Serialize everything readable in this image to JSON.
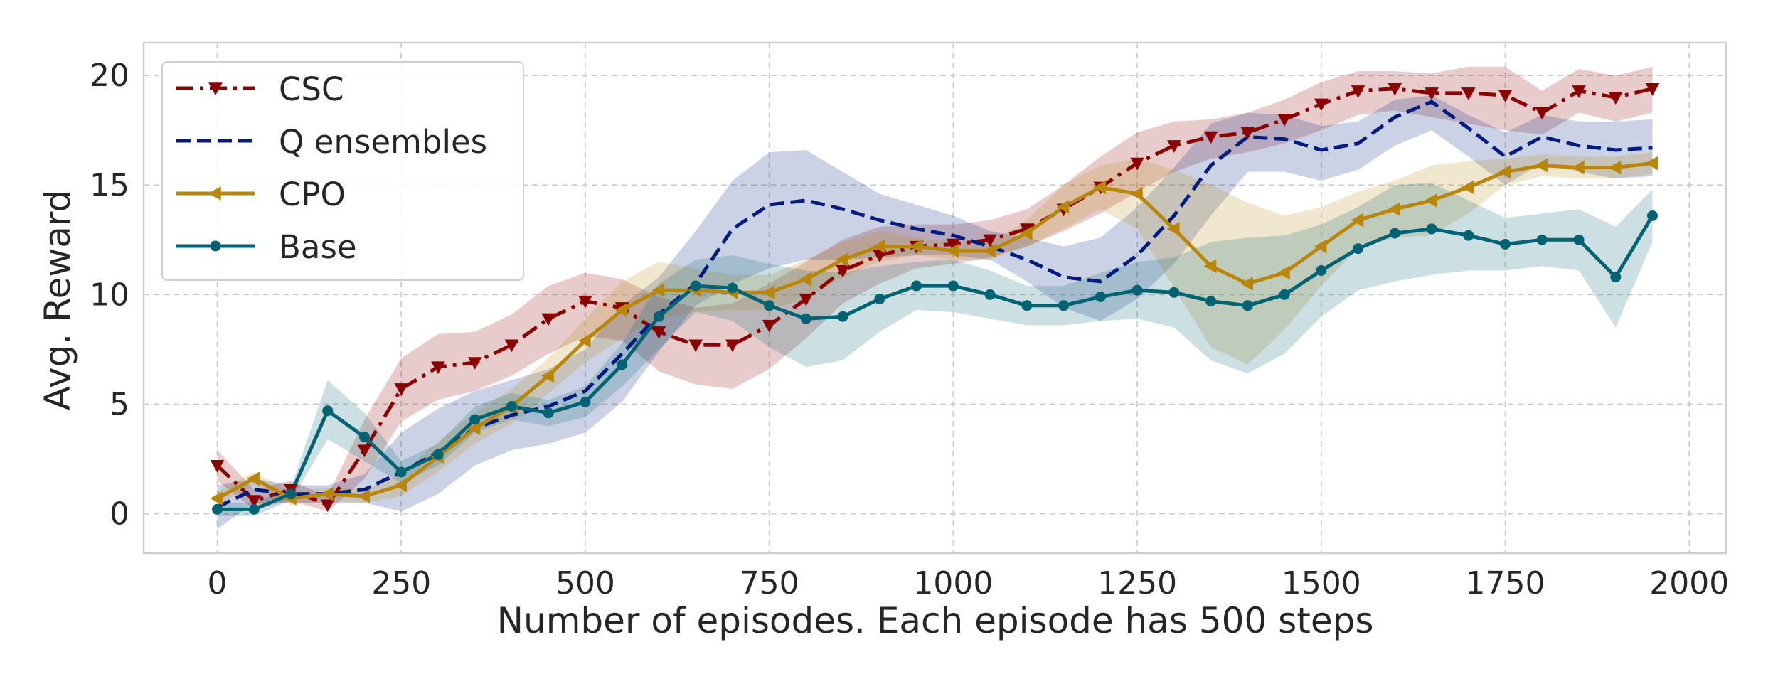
{
  "chart_data": {
    "type": "line",
    "title": "",
    "xlabel": "Number of episodes. Each episode has 500 steps",
    "ylabel": "Avg. Reward",
    "xlim": [
      -100,
      2050
    ],
    "ylim": [
      -1.8,
      21.5
    ],
    "xticks": [
      0,
      250,
      500,
      750,
      1000,
      1250,
      1500,
      1750,
      2000
    ],
    "yticks": [
      0,
      5,
      10,
      15,
      20
    ],
    "grid": true,
    "legend_position": "top-left",
    "x": [
      0,
      50,
      100,
      150,
      200,
      250,
      300,
      350,
      400,
      450,
      500,
      550,
      600,
      650,
      700,
      750,
      800,
      850,
      900,
      950,
      1000,
      1050,
      1100,
      1150,
      1200,
      1250,
      1300,
      1350,
      1400,
      1450,
      1500,
      1550,
      1600,
      1650,
      1700,
      1750,
      1800,
      1850,
      1900,
      1950
    ],
    "series": [
      {
        "name": "CSC",
        "color": "#8b0000",
        "dash": "dashdot",
        "marker": "triangle-down",
        "values": [
          2.2,
          0.6,
          1.1,
          0.4,
          2.9,
          5.7,
          6.7,
          6.9,
          7.7,
          8.9,
          9.7,
          9.4,
          8.3,
          7.7,
          7.7,
          8.6,
          9.8,
          11.1,
          11.8,
          12.2,
          12.3,
          12.5,
          13.0,
          13.9,
          14.9,
          16.0,
          16.8,
          17.2,
          17.4,
          18.0,
          18.7,
          19.3,
          19.4,
          19.2,
          19.2,
          19.1,
          18.3,
          19.3,
          19.0,
          19.4
        ],
        "lower": [
          1.5,
          0.2,
          0.6,
          0.1,
          1.6,
          4.2,
          5.2,
          5.6,
          6.3,
          7.3,
          8.1,
          7.9,
          6.5,
          5.9,
          5.7,
          6.6,
          8.0,
          9.6,
          10.5,
          11.2,
          11.4,
          11.7,
          12.2,
          12.9,
          13.7,
          14.7,
          15.6,
          16.2,
          16.5,
          16.9,
          17.5,
          18.2,
          18.4,
          18.1,
          17.8,
          17.5,
          17.3,
          18.3,
          17.9,
          18.3
        ],
        "upper": [
          2.9,
          1.1,
          1.5,
          0.8,
          4.3,
          7.1,
          8.2,
          8.3,
          9.1,
          10.4,
          11.0,
          10.7,
          9.9,
          9.4,
          9.6,
          10.5,
          11.5,
          12.5,
          13.1,
          13.2,
          13.2,
          13.4,
          13.9,
          15.0,
          16.3,
          17.4,
          17.9,
          18.0,
          18.3,
          18.9,
          19.7,
          20.2,
          20.2,
          20.1,
          20.4,
          20.4,
          19.3,
          20.3,
          20.0,
          20.4
        ]
      },
      {
        "name": "Q ensembles",
        "color": "#001c7f",
        "dash": "dashed",
        "marker": "none",
        "values": [
          0.3,
          1.1,
          0.9,
          0.9,
          1.1,
          1.9,
          2.8,
          3.9,
          4.5,
          4.9,
          5.6,
          7.3,
          9.1,
          10.5,
          13.0,
          14.1,
          14.3,
          13.9,
          13.4,
          13.0,
          12.7,
          12.2,
          11.6,
          10.8,
          10.6,
          11.8,
          13.6,
          15.9,
          17.2,
          17.1,
          16.6,
          16.9,
          18.1,
          18.8,
          17.6,
          16.3,
          17.2,
          16.8,
          16.6,
          16.7
        ],
        "lower": [
          -0.7,
          0.5,
          0.5,
          0.5,
          0.5,
          0.1,
          0.9,
          2.2,
          2.9,
          3.2,
          3.7,
          5.1,
          7.4,
          9.5,
          10.5,
          11.2,
          11.6,
          11.6,
          11.7,
          11.8,
          11.8,
          11.6,
          10.6,
          9.4,
          8.8,
          9.8,
          11.4,
          13.6,
          15.6,
          15.6,
          15.2,
          15.7,
          16.8,
          17.5,
          16.3,
          15.0,
          16.0,
          15.6,
          15.3,
          15.4
        ],
        "upper": [
          1.3,
          1.6,
          1.3,
          1.3,
          1.8,
          3.7,
          4.8,
          5.6,
          6.1,
          6.6,
          7.5,
          9.5,
          10.8,
          12.9,
          15.2,
          16.5,
          16.6,
          15.6,
          14.6,
          14.1,
          13.6,
          12.9,
          12.6,
          12.2,
          12.6,
          14.0,
          15.8,
          17.8,
          18.3,
          18.2,
          17.7,
          17.9,
          18.9,
          19.1,
          18.2,
          17.4,
          18.2,
          17.9,
          17.9,
          18.0
        ]
      },
      {
        "name": "CPO",
        "color": "#b8860b",
        "dash": "solid",
        "marker": "triangle-left",
        "values": [
          0.7,
          1.6,
          0.7,
          0.9,
          0.8,
          1.3,
          2.6,
          3.9,
          4.9,
          6.3,
          7.9,
          9.3,
          10.2,
          10.2,
          10.1,
          10.1,
          10.7,
          11.6,
          12.2,
          12.2,
          12.0,
          12.0,
          12.8,
          14.0,
          14.9,
          14.6,
          13.0,
          11.3,
          10.5,
          11.0,
          12.2,
          13.4,
          13.9,
          14.3,
          14.9,
          15.6,
          15.9,
          15.8,
          15.8,
          16.0
        ],
        "lower": [
          0.4,
          1.3,
          0.4,
          0.6,
          0.5,
          0.8,
          1.9,
          3.2,
          4.1,
          5.5,
          6.9,
          8.0,
          8.9,
          9.2,
          9.3,
          9.3,
          9.8,
          10.8,
          11.5,
          11.8,
          11.6,
          11.6,
          12.2,
          13.0,
          13.9,
          13.0,
          10.3,
          7.6,
          6.8,
          8.4,
          10.4,
          12.1,
          12.6,
          12.7,
          13.7,
          15.0,
          15.4,
          15.3,
          15.3,
          15.5
        ],
        "upper": [
          1.0,
          1.9,
          1.0,
          1.2,
          1.1,
          1.8,
          3.3,
          4.6,
          5.7,
          7.1,
          8.9,
          10.6,
          11.5,
          11.2,
          10.9,
          10.9,
          11.6,
          12.4,
          12.9,
          12.6,
          12.4,
          12.4,
          13.4,
          15.0,
          15.9,
          16.2,
          15.7,
          15.0,
          14.2,
          13.6,
          14.0,
          14.7,
          15.2,
          15.9,
          16.1,
          16.2,
          16.4,
          16.3,
          16.3,
          16.5
        ]
      },
      {
        "name": "Base",
        "color": "#006374",
        "dash": "solid",
        "marker": "circle",
        "values": [
          0.2,
          0.2,
          0.9,
          4.7,
          3.5,
          1.9,
          2.7,
          4.3,
          4.9,
          4.6,
          5.1,
          6.8,
          9.0,
          10.4,
          10.3,
          9.5,
          8.9,
          9.0,
          9.8,
          10.4,
          10.4,
          10.0,
          9.5,
          9.5,
          9.9,
          10.2,
          10.1,
          9.7,
          9.5,
          10.0,
          11.1,
          12.1,
          12.8,
          13.0,
          12.7,
          12.3,
          12.5,
          12.5,
          10.8,
          13.6
        ],
        "lower": [
          -0.1,
          -0.1,
          0.6,
          3.4,
          2.4,
          1.4,
          2.2,
          3.7,
          4.3,
          4.0,
          4.4,
          5.8,
          7.5,
          9.2,
          8.8,
          7.6,
          6.7,
          7.0,
          8.3,
          9.3,
          9.2,
          8.9,
          8.6,
          8.6,
          8.8,
          8.9,
          8.5,
          7.0,
          6.4,
          7.3,
          9.0,
          10.2,
          10.6,
          10.9,
          11.1,
          11.1,
          11.3,
          11.1,
          8.5,
          12.4
        ],
        "upper": [
          0.5,
          0.5,
          1.2,
          6.1,
          4.6,
          2.4,
          3.2,
          4.9,
          5.5,
          5.2,
          5.8,
          7.8,
          10.5,
          11.6,
          11.8,
          11.4,
          11.1,
          11.0,
          11.3,
          11.5,
          11.6,
          11.1,
          10.4,
          10.4,
          11.0,
          11.5,
          11.7,
          12.4,
          12.6,
          12.7,
          13.2,
          14.0,
          15.0,
          15.1,
          14.3,
          13.5,
          13.7,
          13.9,
          13.1,
          14.8
        ]
      }
    ]
  }
}
